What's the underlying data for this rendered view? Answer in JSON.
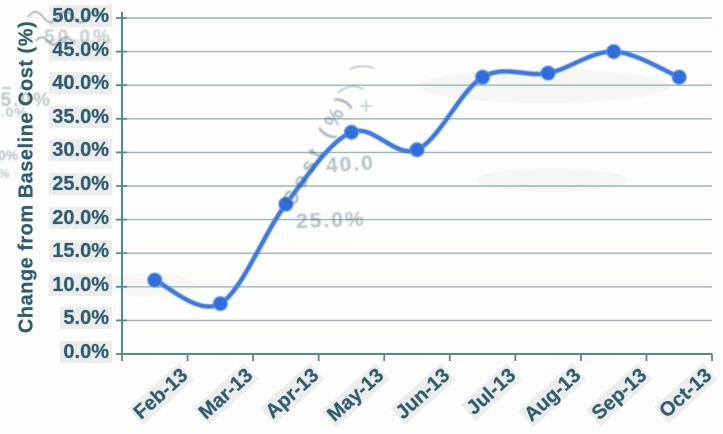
{
  "chart_data": {
    "type": "line",
    "title": "",
    "xlabel": "",
    "ylabel": "Change from Baseline Cost (%)",
    "categories": [
      "Feb-13",
      "Mar-13",
      "Apr-13",
      "May-13",
      "Jun-13",
      "Jul-13",
      "Aug-13",
      "Sep-13",
      "Oct-13"
    ],
    "series": [
      {
        "name": "Change from Baseline Cost (%)",
        "values": [
          11.0,
          7.5,
          22.3,
          33.0,
          30.4,
          41.2,
          41.8,
          45.0,
          41.2
        ]
      }
    ],
    "ylim": [
      0,
      50
    ],
    "ytick_step": 5,
    "ytick_labels": [
      "0.0%",
      "5.0%",
      "10.0%",
      "15.0%",
      "20.0%",
      "25.0%",
      "30.0%",
      "35.0%",
      "40.0%",
      "45.0%",
      "50.0%"
    ],
    "grid": true,
    "legend": "none",
    "smooth": true,
    "marker": "circle"
  },
  "colors": {
    "line": "#3c79e0",
    "marker": "#2f6edd",
    "grid": "#84adaa",
    "axis": "#4e8b8d",
    "label_text": "#2d5d6e"
  },
  "ghost_artifacts": {
    "items": [
      {
        "text": "50.0%"
      },
      {
        "text": "45.0%"
      },
      {
        "text": "5.0%"
      },
      {
        "text": "0%"
      },
      {
        "text": "%"
      },
      {
        "text": "Cost (%)"
      },
      {
        "text": "40.0"
      },
      {
        "text": "25.0%"
      }
    ]
  }
}
